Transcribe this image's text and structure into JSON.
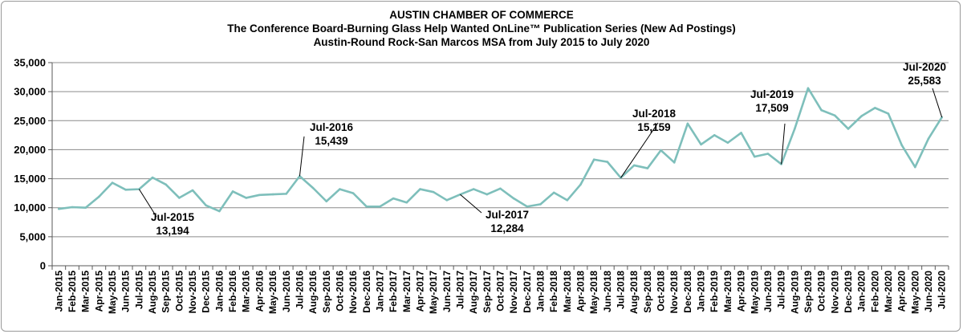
{
  "chart_data": {
    "type": "line",
    "title": "AUSTIN CHAMBER OF COMMERCE",
    "subtitle_lines": [
      "The Conference Board-Burning Glass Help Wanted OnLine™ Publication Series (New Ad Postings)",
      "Austin-Round Rock-San Marcos MSA from July 2015 to July 2020"
    ],
    "xlabel": "",
    "ylabel": "",
    "ylim": [
      0,
      35000
    ],
    "y_ticks": [
      "0",
      "5,000",
      "10,000",
      "15,000",
      "20,000",
      "25,000",
      "30,000",
      "35,000"
    ],
    "y_tick_values": [
      0,
      5000,
      10000,
      15000,
      20000,
      25000,
      30000,
      35000
    ],
    "grid": "horizontal",
    "line_color": "#7ebfbb",
    "categories": [
      "Jan-2015",
      "Feb-2015",
      "Mar-2015",
      "Apr-2015",
      "May-2015",
      "Jun-2015",
      "Jul-2015",
      "Aug-2015",
      "Sep-2015",
      "Oct-2015",
      "Nov-2015",
      "Dec-2015",
      "Jan-2016",
      "Feb-2016",
      "Mar-2016",
      "Apr-2016",
      "May-2016",
      "Jun-2016",
      "Jul-2016",
      "Aug-2016",
      "Sep-2016",
      "Oct-2016",
      "Nov-2016",
      "Dec-2016",
      "Jan-2017",
      "Feb-2017",
      "Mar-2017",
      "Apr-2017",
      "May-2017",
      "Jun-2017",
      "Jul-2017",
      "Aug-2017",
      "Sep-2017",
      "Oct-2017",
      "Nov-2017",
      "Dec-2017",
      "Jan-2018",
      "Feb-2018",
      "Mar-2018",
      "Apr-2018",
      "May-2018",
      "Jun-2018",
      "Jul-2018",
      "Aug-2018",
      "Sep-2018",
      "Oct-2018",
      "Nov-2018",
      "Dec-2018",
      "Jan-2019",
      "Feb-2019",
      "Mar-2019",
      "Apr-2019",
      "May-2019",
      "Jun-2019",
      "Jul-2019",
      "Aug-2019",
      "Sep-2019",
      "Oct-2019",
      "Nov-2019",
      "Dec-2019",
      "Jan-2020",
      "Feb-2020",
      "Mar-2020",
      "Apr-2020",
      "May-2020",
      "Jun-2020",
      "Jul-2020"
    ],
    "x_tick_labels": [
      "Jan-2015",
      "Feb-2015",
      "Mar-2015",
      "Apr-2015",
      "May-2015",
      "Jun-2015",
      "Jul-2015",
      "Aug-2015",
      "Sep-2015",
      "Oct-2015",
      "Nov-2015",
      "Dec-2015",
      "Jan-2016",
      "Feb-2016",
      "Mar-2016",
      "Apr-2016",
      "May-2016",
      "Jun-2016",
      "Jul-2016",
      "Aug-2016",
      "Sep-2016",
      "Oct-2016",
      "Nov-2016",
      "Dec-2016",
      "Jan-2017",
      "Feb-2017",
      "Mar-2017",
      "Apr-2017",
      "May-2017",
      "Jun-2017",
      "Jul-2017",
      "Aug-2017",
      "Sep-2017",
      "Oct-2017",
      "Nov-2017",
      "Dec-2017",
      "Jan-2018",
      "Feb-2018",
      "Mar-2018",
      "Apr-2018",
      "May-2018",
      "Jun-2018",
      "Jul-2018",
      "Aug-2018",
      "Sep-2018",
      "Oct-2018",
      "Nov-2018",
      "Dec-2018",
      "Jan-2019",
      "Feb-2019",
      "Mar-2019",
      "Apr-2019",
      "May-2019",
      "Jun-2019",
      "Jul-2019",
      "Aug-2019",
      "Sep-2019",
      "Oct-2019",
      "Nov-2019",
      "Dec-2019",
      "Jan-2020",
      "Feb-2020",
      "Mar-2020",
      "Apr-2020",
      "May-2020",
      "Jun-2020",
      "Jul-2020"
    ],
    "series": [
      {
        "values": [
          9800,
          10100,
          10000,
          11900,
          14300,
          13100,
          13194,
          15200,
          14000,
          11700,
          13000,
          10400,
          9400,
          12800,
          11700,
          12200,
          12300,
          12400,
          15439,
          13400,
          11100,
          13200,
          12500,
          10200,
          10200,
          11600,
          10900,
          13200,
          12700,
          11300,
          12284,
          13200,
          12300,
          13300,
          11600,
          10200,
          10600,
          12600,
          11300,
          14000,
          18300,
          17900,
          15159,
          17300,
          16800,
          19900,
          17800,
          24500,
          20900,
          22500,
          21200,
          22900,
          18800,
          19300,
          17509,
          23600,
          30600,
          26800,
          25900,
          23600,
          25800,
          27200,
          26200,
          20800,
          17000,
          21900,
          25583
        ]
      }
    ],
    "annotations": [
      {
        "index": 6,
        "label": "Jul-2015",
        "value_text": "13,194"
      },
      {
        "index": 18,
        "label": "Jul-2016",
        "value_text": "15,439"
      },
      {
        "index": 30,
        "label": "Jul-2017",
        "value_text": "12,284"
      },
      {
        "index": 42,
        "label": "Jul-2018",
        "value_text": "15,159"
      },
      {
        "index": 54,
        "label": "Jul-2019",
        "value_text": "17,509"
      },
      {
        "index": 66,
        "label": "Jul-2020",
        "value_text": "25,583"
      }
    ]
  }
}
